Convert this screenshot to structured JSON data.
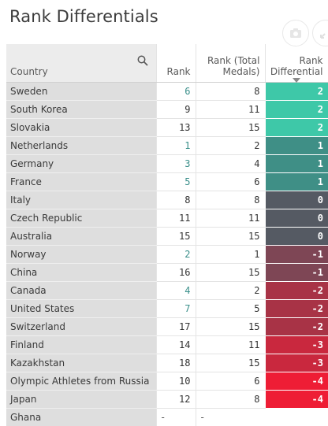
{
  "title": "Rank Differentials",
  "header": {
    "country": "Country",
    "rank": "Rank",
    "rank_total_line1": "Rank (Total",
    "rank_total_line2": "Medals)",
    "diff_line1": "Rank",
    "diff_line2": "Differential"
  },
  "icons": {
    "search": "search-icon",
    "camera": "camera-icon",
    "expand": "expand-icon",
    "sort": "sort-descending-icon"
  },
  "rows": [
    {
      "country": "Sweden",
      "rank": "6",
      "rank_total": "8",
      "diff": "2",
      "color": "#3ec8a8",
      "rank_teal": true
    },
    {
      "country": "South Korea",
      "rank": "9",
      "rank_total": "11",
      "diff": "2",
      "color": "#3ec8a8",
      "rank_teal": false
    },
    {
      "country": "Slovakia",
      "rank": "13",
      "rank_total": "15",
      "diff": "2",
      "color": "#3ec8a8",
      "rank_teal": false
    },
    {
      "country": "Netherlands",
      "rank": "1",
      "rank_total": "2",
      "diff": "1",
      "color": "#3f8f86",
      "rank_teal": true
    },
    {
      "country": "Germany",
      "rank": "3",
      "rank_total": "4",
      "diff": "1",
      "color": "#3f8f86",
      "rank_teal": true
    },
    {
      "country": "France",
      "rank": "5",
      "rank_total": "6",
      "diff": "1",
      "color": "#3f8f86",
      "rank_teal": true
    },
    {
      "country": "Italy",
      "rank": "8",
      "rank_total": "8",
      "diff": "0",
      "color": "#555a63",
      "rank_teal": false
    },
    {
      "country": "Czech Republic",
      "rank": "11",
      "rank_total": "11",
      "diff": "0",
      "color": "#555a63",
      "rank_teal": false
    },
    {
      "country": "Australia",
      "rank": "15",
      "rank_total": "15",
      "diff": "0",
      "color": "#555a63",
      "rank_teal": false
    },
    {
      "country": "Norway",
      "rank": "2",
      "rank_total": "1",
      "diff": "-1",
      "color": "#7e4655",
      "rank_teal": true
    },
    {
      "country": "China",
      "rank": "16",
      "rank_total": "15",
      "diff": "-1",
      "color": "#7e4655",
      "rank_teal": false
    },
    {
      "country": "Canada",
      "rank": "4",
      "rank_total": "2",
      "diff": "-2",
      "color": "#a83346",
      "rank_teal": true
    },
    {
      "country": "United States",
      "rank": "7",
      "rank_total": "5",
      "diff": "-2",
      "color": "#a83346",
      "rank_teal": true
    },
    {
      "country": "Switzerland",
      "rank": "17",
      "rank_total": "15",
      "diff": "-2",
      "color": "#a83346",
      "rank_teal": false
    },
    {
      "country": "Finland",
      "rank": "14",
      "rank_total": "11",
      "diff": "-3",
      "color": "#c9283e",
      "rank_teal": false
    },
    {
      "country": "Kazakhstan",
      "rank": "18",
      "rank_total": "15",
      "diff": "-3",
      "color": "#c9283e",
      "rank_teal": false
    },
    {
      "country": "Olympic Athletes from Russia",
      "rank": "10",
      "rank_total": "6",
      "diff": "-4",
      "color": "#ee1d35",
      "rank_teal": false
    },
    {
      "country": "Japan",
      "rank": "12",
      "rank_total": "8",
      "diff": "-4",
      "color": "#ee1d35",
      "rank_teal": false
    },
    {
      "country": "Ghana",
      "rank": "-",
      "rank_total": "-",
      "diff": "",
      "color": "#ffffff",
      "rank_teal": false
    }
  ]
}
